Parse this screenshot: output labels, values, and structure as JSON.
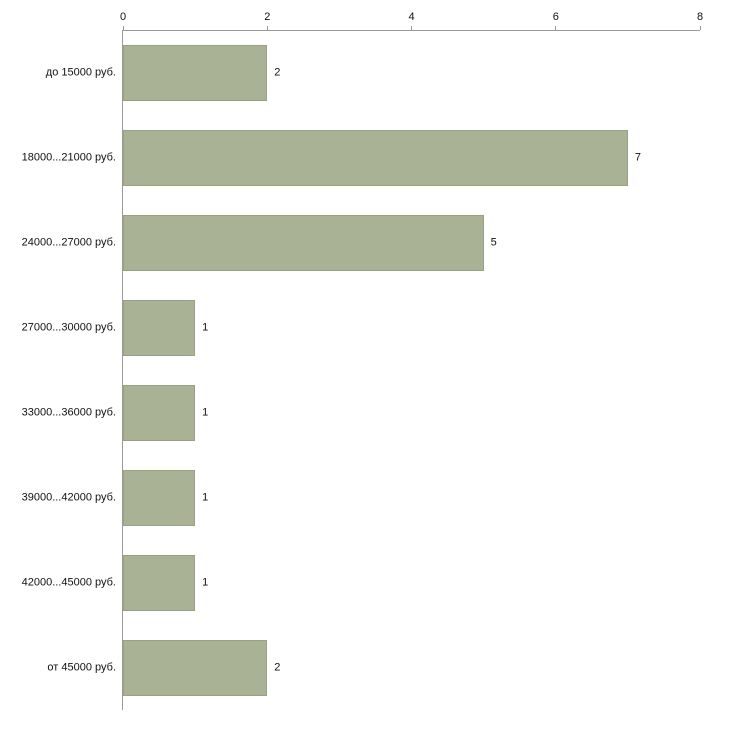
{
  "chart_data": {
    "type": "bar",
    "orientation": "horizontal",
    "title": "",
    "xlabel": "",
    "ylabel": "",
    "categories": [
      "до 15000 руб.",
      "18000...21000 руб.",
      "24000...27000 руб.",
      "27000...30000 руб.",
      "33000...36000 руб.",
      "39000...42000 руб.",
      "42000...45000 руб.",
      "от 45000 руб."
    ],
    "values": [
      2,
      7,
      5,
      1,
      1,
      1,
      1,
      2
    ],
    "xlim": [
      0,
      8
    ],
    "x_ticks": [
      0,
      2,
      4,
      6,
      8
    ],
    "grid": false,
    "legend": false,
    "value_labels": true,
    "colors": {
      "bar_fill": "#a9b294",
      "bar_border": "#97a37f",
      "axis": "#9a9a9a",
      "text": "#111111",
      "background": "#ffffff"
    }
  }
}
